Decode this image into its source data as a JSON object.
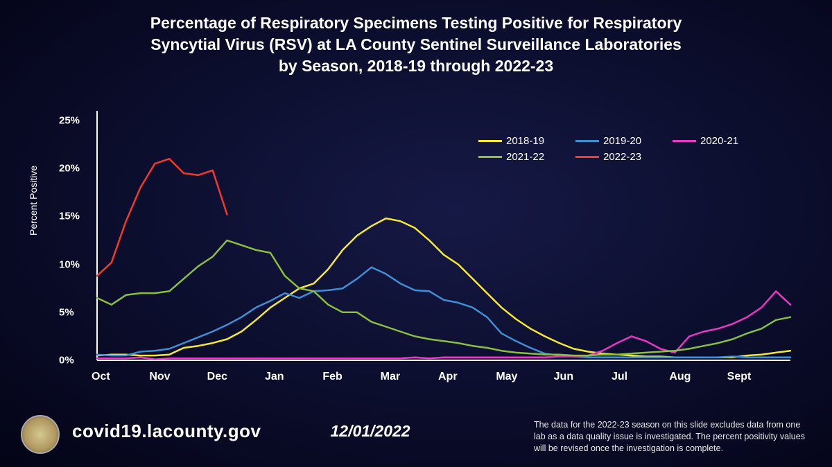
{
  "title_lines": [
    "Percentage of Respiratory Specimens Testing Positive for Respiratory",
    "Syncytial Virus (RSV) at LA County Sentinel Surveillance Laboratories",
    "by Season, 2018-19 through 2022-23"
  ],
  "chart": {
    "type": "line",
    "y_label": "Percent Positive",
    "y_ticks": [
      0,
      5,
      10,
      15,
      20,
      25
    ],
    "y_tick_suffix": "%",
    "ylim": [
      0,
      26
    ],
    "x_categories": [
      "Oct",
      "Nov",
      "Dec",
      "Jan",
      "Feb",
      "Mar",
      "Apr",
      "May",
      "Jun",
      "Jul",
      "Aug",
      "Sept"
    ],
    "weeks_per_month": 4,
    "background": "transparent",
    "axis_color": "#ffffff",
    "axis_width": 2,
    "line_width": 2.5,
    "title_fontsize": 23,
    "label_fontsize": 14,
    "tick_fontsize": 15,
    "series": [
      {
        "name": "2018-19",
        "color": "#f5e932",
        "values": [
          0.5,
          0.6,
          0.6,
          0.5,
          0.5,
          0.6,
          1.3,
          1.5,
          1.8,
          2.2,
          3.0,
          4.2,
          5.5,
          6.5,
          7.5,
          8.0,
          9.5,
          11.5,
          13.0,
          14.0,
          14.8,
          14.5,
          13.8,
          12.5,
          11.0,
          10.0,
          8.5,
          7.0,
          5.5,
          4.3,
          3.3,
          2.5,
          1.8,
          1.2,
          0.9,
          0.7,
          0.6,
          0.5,
          0.4,
          0.4,
          0.3,
          0.3,
          0.3,
          0.3,
          0.3,
          0.5,
          0.6,
          0.8,
          1.0
        ]
      },
      {
        "name": "2019-20",
        "color": "#3d90d6",
        "values": [
          0.6,
          0.5,
          0.5,
          0.9,
          1.0,
          1.2,
          1.8,
          2.4,
          3.0,
          3.7,
          4.5,
          5.5,
          6.2,
          7.0,
          6.5,
          7.2,
          7.3,
          7.5,
          8.5,
          9.7,
          9.0,
          8.0,
          7.3,
          7.2,
          6.3,
          6.0,
          5.5,
          4.5,
          2.8,
          2.0,
          1.3,
          0.7,
          0.5,
          0.4,
          0.3,
          0.3,
          0.3,
          0.3,
          0.3,
          0.3,
          0.3,
          0.3,
          0.3,
          0.3,
          0.4,
          0.3,
          0.3,
          0.3,
          0.3
        ]
      },
      {
        "name": "2020-21",
        "color": "#e838c4",
        "values": [
          0.2,
          0.2,
          0.2,
          0.3,
          0.1,
          0.2,
          0.2,
          0.2,
          0.2,
          0.2,
          0.2,
          0.2,
          0.2,
          0.2,
          0.2,
          0.2,
          0.2,
          0.2,
          0.2,
          0.2,
          0.2,
          0.2,
          0.3,
          0.2,
          0.3,
          0.3,
          0.3,
          0.3,
          0.3,
          0.3,
          0.3,
          0.3,
          0.4,
          0.4,
          0.5,
          1.0,
          1.8,
          2.5,
          2.0,
          1.2,
          0.8,
          2.5,
          3.0,
          3.3,
          3.8,
          4.5,
          5.5,
          7.2,
          5.8
        ]
      },
      {
        "name": "2021-22",
        "color": "#8bbf3e",
        "values": [
          6.5,
          5.8,
          6.8,
          7.0,
          7.0,
          7.2,
          8.5,
          9.8,
          10.8,
          12.5,
          12.0,
          11.5,
          11.2,
          8.8,
          7.5,
          7.2,
          5.8,
          5.0,
          5.0,
          4.0,
          3.5,
          3.0,
          2.5,
          2.2,
          2.0,
          1.8,
          1.5,
          1.3,
          1.0,
          0.8,
          0.7,
          0.6,
          0.6,
          0.5,
          0.5,
          0.6,
          0.6,
          0.7,
          0.8,
          0.9,
          1.0,
          1.2,
          1.5,
          1.8,
          2.2,
          2.8,
          3.3,
          4.2,
          4.5
        ]
      },
      {
        "name": "2022-23",
        "color": "#f33a2a",
        "values": [
          8.8,
          10.2,
          14.5,
          18.0,
          20.5,
          21.0,
          19.5,
          19.3,
          19.8,
          15.2
        ]
      }
    ]
  },
  "footer": {
    "url": "covid19.lacounty.gov",
    "date": "12/01/2022",
    "note": "The data for the 2022-23 season on this slide excludes data from one lab as a data quality issue is investigated. The percent positivity values will be revised once the investigation is complete."
  }
}
